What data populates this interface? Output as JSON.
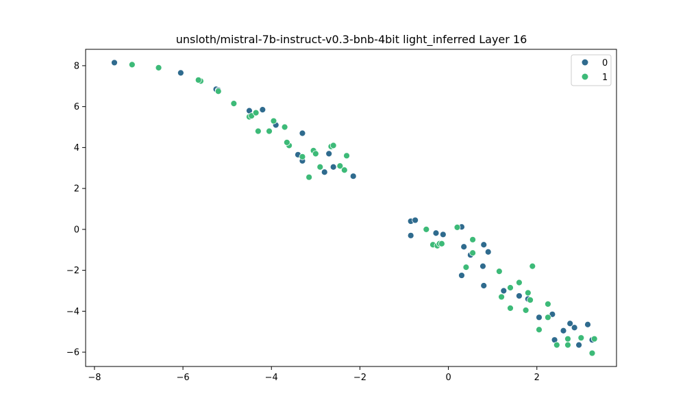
{
  "chart_data": {
    "type": "scatter",
    "title": "unsloth/mistral-7b-instruct-v0.3-bnb-4bit light_inferred Layer 16",
    "xlabel": "",
    "ylabel": "",
    "xlim": [
      -8.2,
      3.8
    ],
    "ylim": [
      -6.7,
      8.8
    ],
    "xticks": [
      -8,
      -6,
      -4,
      -2,
      0,
      2
    ],
    "yticks": [
      -6,
      -4,
      -2,
      0,
      2,
      4,
      6,
      8
    ],
    "grid": false,
    "legend": {
      "placement": "top-right",
      "labels": [
        "0",
        "1"
      ]
    },
    "series": [
      {
        "name": "0",
        "color": "#2f6b8e",
        "points": [
          [
            -7.55,
            8.15
          ],
          [
            -6.05,
            7.65
          ],
          [
            -5.25,
            6.85
          ],
          [
            -5.2,
            6.8
          ],
          [
            -4.5,
            5.8
          ],
          [
            -4.2,
            5.85
          ],
          [
            -3.9,
            5.1
          ],
          [
            -3.65,
            4.25
          ],
          [
            -3.3,
            4.7
          ],
          [
            -3.4,
            3.65
          ],
          [
            -3.3,
            3.35
          ],
          [
            -2.7,
            3.7
          ],
          [
            -2.8,
            2.8
          ],
          [
            -2.6,
            3.05
          ],
          [
            -2.15,
            2.6
          ],
          [
            -0.85,
            0.4
          ],
          [
            -0.75,
            0.45
          ],
          [
            -0.85,
            -0.3
          ],
          [
            -0.28,
            -0.18
          ],
          [
            -0.12,
            -0.25
          ],
          [
            0.3,
            0.12
          ],
          [
            0.35,
            -0.85
          ],
          [
            0.8,
            -0.75
          ],
          [
            0.9,
            -1.1
          ],
          [
            0.5,
            -1.25
          ],
          [
            0.3,
            -2.25
          ],
          [
            0.78,
            -1.8
          ],
          [
            0.8,
            -2.75
          ],
          [
            1.25,
            -3.0
          ],
          [
            1.6,
            -3.25
          ],
          [
            1.8,
            -3.4
          ],
          [
            2.05,
            -4.3
          ],
          [
            2.35,
            -4.15
          ],
          [
            2.4,
            -5.4
          ],
          [
            2.6,
            -4.95
          ],
          [
            2.75,
            -4.6
          ],
          [
            2.85,
            -4.8
          ],
          [
            2.95,
            -5.65
          ],
          [
            3.15,
            -4.65
          ],
          [
            3.25,
            -5.4
          ]
        ]
      },
      {
        "name": "1",
        "color": "#3dba78",
        "points": [
          [
            -7.15,
            8.05
          ],
          [
            -6.55,
            7.9
          ],
          [
            -5.6,
            7.25
          ],
          [
            -5.65,
            7.3
          ],
          [
            -5.2,
            6.75
          ],
          [
            -4.85,
            6.15
          ],
          [
            -4.5,
            5.5
          ],
          [
            -4.45,
            5.55
          ],
          [
            -4.35,
            5.7
          ],
          [
            -4.3,
            4.8
          ],
          [
            -4.05,
            4.8
          ],
          [
            -3.95,
            5.3
          ],
          [
            -3.7,
            5.0
          ],
          [
            -3.6,
            4.1
          ],
          [
            -3.65,
            4.25
          ],
          [
            -3.3,
            3.55
          ],
          [
            -3.05,
            3.85
          ],
          [
            -3.0,
            3.7
          ],
          [
            -2.9,
            3.05
          ],
          [
            -3.15,
            2.55
          ],
          [
            -2.65,
            4.05
          ],
          [
            -2.6,
            4.1
          ],
          [
            -2.45,
            3.1
          ],
          [
            -2.35,
            2.9
          ],
          [
            -2.3,
            3.6
          ],
          [
            -0.5,
            0.0
          ],
          [
            -0.35,
            -0.75
          ],
          [
            -0.25,
            -0.8
          ],
          [
            -0.2,
            -0.7
          ],
          [
            -0.15,
            -0.7
          ],
          [
            0.2,
            0.1
          ],
          [
            0.4,
            -1.85
          ],
          [
            0.55,
            -0.5
          ],
          [
            0.55,
            -1.15
          ],
          [
            1.15,
            -2.05
          ],
          [
            1.2,
            -3.3
          ],
          [
            1.4,
            -2.85
          ],
          [
            1.4,
            -3.85
          ],
          [
            1.6,
            -2.6
          ],
          [
            1.75,
            -3.95
          ],
          [
            1.8,
            -3.1
          ],
          [
            1.85,
            -3.45
          ],
          [
            1.9,
            -1.8
          ],
          [
            2.05,
            -4.9
          ],
          [
            2.25,
            -3.65
          ],
          [
            2.25,
            -4.3
          ],
          [
            2.45,
            -5.65
          ],
          [
            2.7,
            -5.35
          ],
          [
            2.7,
            -5.65
          ],
          [
            3.0,
            -5.3
          ],
          [
            3.25,
            -6.05
          ],
          [
            3.3,
            -5.35
          ]
        ]
      }
    ]
  }
}
